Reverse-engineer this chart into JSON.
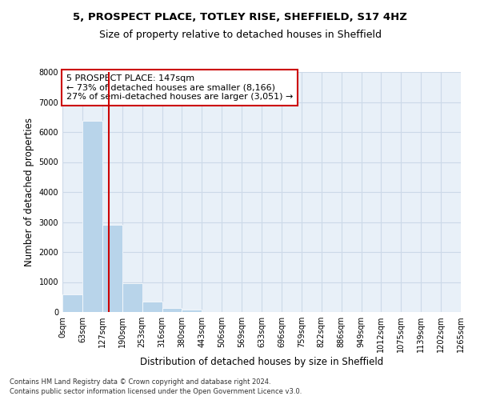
{
  "title_line1": "5, PROSPECT PLACE, TOTLEY RISE, SHEFFIELD, S17 4HZ",
  "title_line2": "Size of property relative to detached houses in Sheffield",
  "xlabel": "Distribution of detached houses by size in Sheffield",
  "ylabel": "Number of detached properties",
  "annotation_line1": "5 PROSPECT PLACE: 147sqm",
  "annotation_line2": "← 73% of detached houses are smaller (8,166)",
  "annotation_line3": "27% of semi-detached houses are larger (3,051) →",
  "property_size": 147,
  "bar_color": "#b8d4ea",
  "bin_width": 63,
  "bar_values": [
    600,
    6380,
    2920,
    960,
    360,
    140,
    75,
    0,
    0,
    0,
    0,
    0,
    0,
    0,
    0,
    0,
    0,
    0,
    0,
    0
  ],
  "x_labels": [
    "0sqm",
    "63sqm",
    "127sqm",
    "190sqm",
    "253sqm",
    "316sqm",
    "380sqm",
    "443sqm",
    "506sqm",
    "569sqm",
    "633sqm",
    "696sqm",
    "759sqm",
    "822sqm",
    "886sqm",
    "949sqm",
    "1012sqm",
    "1075sqm",
    "1139sqm",
    "1202sqm",
    "1265sqm"
  ],
  "ylim": [
    0,
    8000
  ],
  "yticks": [
    0,
    1000,
    2000,
    3000,
    4000,
    5000,
    6000,
    7000,
    8000
  ],
  "vline_x": 147,
  "vline_color": "#cc0000",
  "grid_color": "#ccd9e8",
  "background_color": "#e8f0f8",
  "footer_line1": "Contains HM Land Registry data © Crown copyright and database right 2024.",
  "footer_line2": "Contains public sector information licensed under the Open Government Licence v3.0.",
  "annotation_box_color": "#cc0000",
  "title_fontsize": 9.5,
  "subtitle_fontsize": 9,
  "axis_label_fontsize": 8.5,
  "tick_fontsize": 7,
  "annotation_fontsize": 8,
  "footer_fontsize": 6
}
